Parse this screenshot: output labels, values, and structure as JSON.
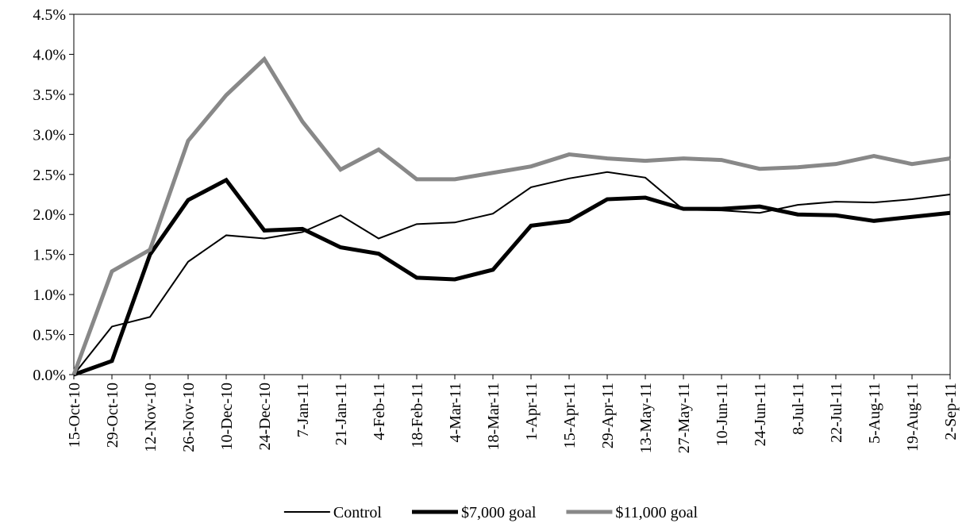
{
  "chart_data": {
    "type": "line",
    "categories": [
      "15-Oct-10",
      "29-Oct-10",
      "12-Nov-10",
      "26-Nov-10",
      "10-Dec-10",
      "24-Dec-10",
      "7-Jan-11",
      "21-Jan-11",
      "4-Feb-11",
      "18-Feb-11",
      "4-Mar-11",
      "18-Mar-11",
      "1-Apr-11",
      "15-Apr-11",
      "29-Apr-11",
      "13-May-11",
      "27-May-11",
      "10-Jun-11",
      "24-Jun-11",
      "8-Jul-11",
      "22-Jul-11",
      "5-Aug-11",
      "19-Aug-11",
      "2-Sep-11"
    ],
    "series": [
      {
        "name": "Control",
        "color": "#000000",
        "width": 2,
        "values": [
          0,
          0.6,
          0.72,
          1.41,
          1.74,
          1.7,
          1.78,
          1.99,
          1.7,
          1.88,
          1.9,
          2.01,
          2.34,
          2.45,
          2.53,
          2.46,
          2.06,
          2.05,
          2.02,
          2.12,
          2.16,
          2.15,
          2.19,
          2.25
        ]
      },
      {
        "name": "$7,000 goal",
        "color": "#000000",
        "width": 5,
        "values": [
          0,
          0.17,
          1.5,
          2.18,
          2.43,
          1.8,
          1.82,
          1.59,
          1.51,
          1.21,
          1.19,
          1.31,
          1.86,
          1.92,
          2.19,
          2.21,
          2.07,
          2.07,
          2.1,
          2.0,
          1.99,
          1.92,
          1.97,
          2.02
        ]
      },
      {
        "name": "$11,000 goal",
        "color": "#888888",
        "width": 5,
        "values": [
          0,
          1.29,
          1.56,
          2.92,
          3.49,
          3.94,
          3.16,
          2.56,
          2.81,
          2.44,
          2.44,
          2.52,
          2.6,
          2.75,
          2.7,
          2.67,
          2.7,
          2.68,
          2.57,
          2.59,
          2.63,
          2.73,
          2.63,
          2.7
        ]
      }
    ],
    "ylim": [
      0,
      4.5
    ],
    "yticks": [
      {
        "value": 0,
        "label": "0.0%"
      },
      {
        "value": 0.5,
        "label": "0.5%"
      },
      {
        "value": 1,
        "label": "1.0%"
      },
      {
        "value": 1.5,
        "label": "1.5%"
      },
      {
        "value": 2,
        "label": "2.0%"
      },
      {
        "value": 2.5,
        "label": "2.5%"
      },
      {
        "value": 3,
        "label": "3.0%"
      },
      {
        "value": 3.5,
        "label": "3.5%"
      },
      {
        "value": 4,
        "label": "4.0%"
      },
      {
        "value": 4.5,
        "label": "4.5%"
      }
    ],
    "grid": false,
    "legend": "bottom"
  }
}
